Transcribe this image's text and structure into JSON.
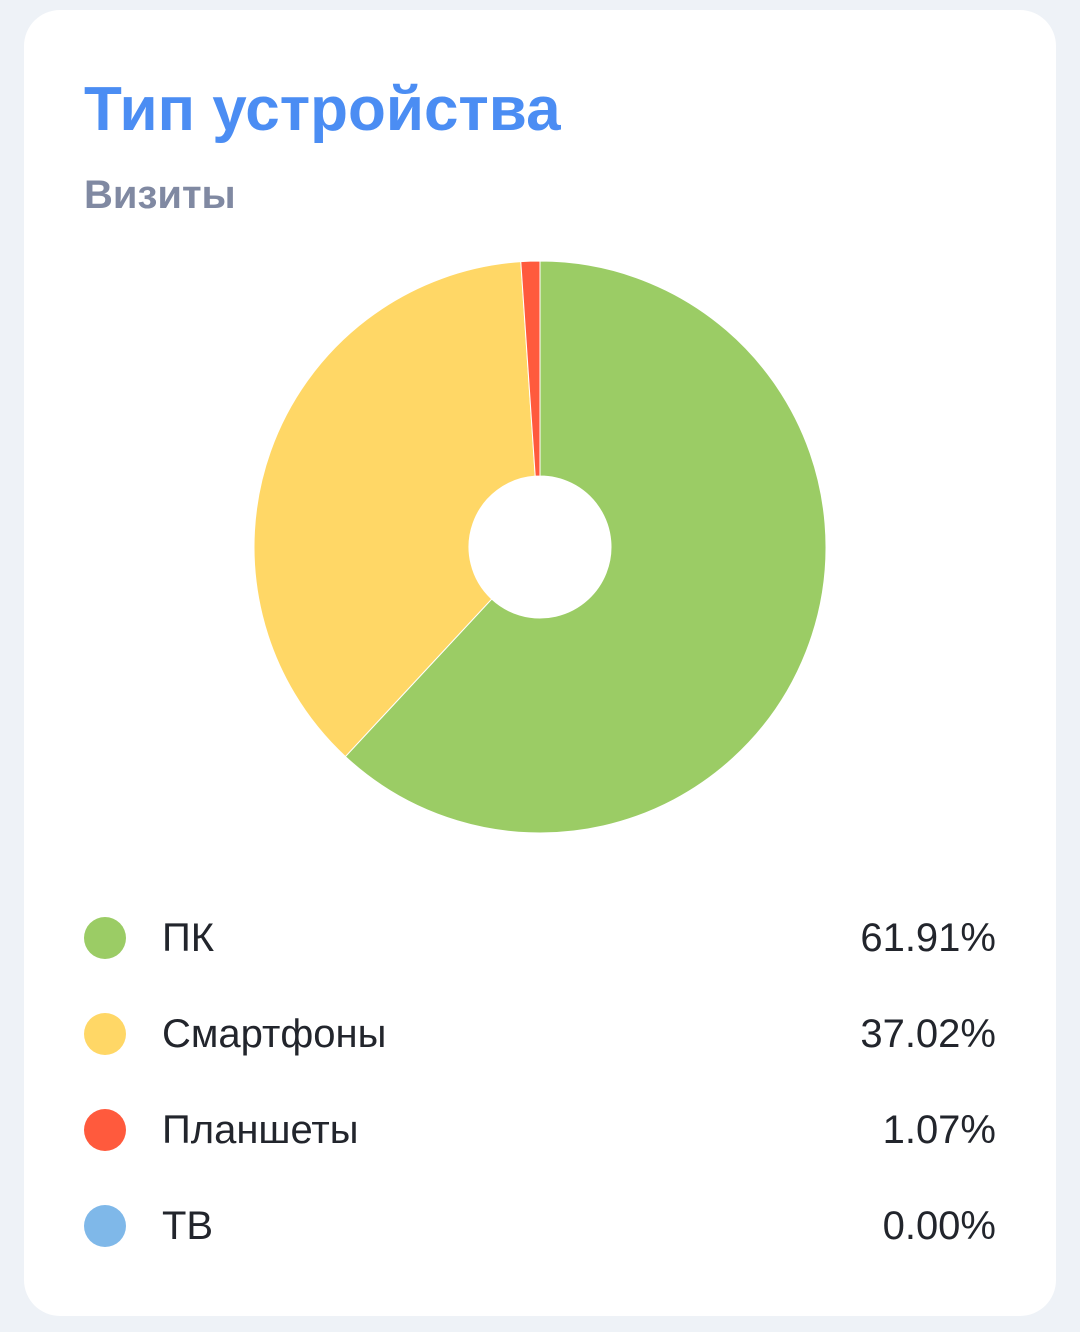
{
  "header": {
    "title": "Тип устройства",
    "subtitle": "Визиты"
  },
  "chart_data": {
    "type": "pie",
    "donut": true,
    "categories": [
      "ПК",
      "Смартфоны",
      "Планшеты",
      "ТВ"
    ],
    "values": [
      61.91,
      37.02,
      1.07,
      0.0
    ],
    "labels": [
      "61.91%",
      "37.02%",
      "1.07%",
      "0.00%"
    ],
    "colors": [
      "#9bcc65",
      "#ffd766",
      "#ff5a3d",
      "#7fb8e9"
    ],
    "legend_position": "bottom"
  }
}
